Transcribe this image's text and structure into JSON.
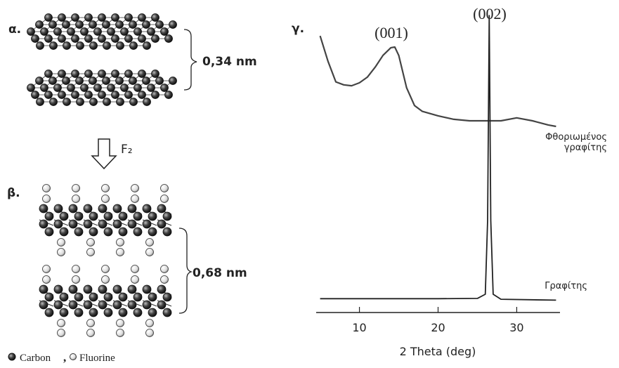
{
  "panels": {
    "a": {
      "label": "α.",
      "spacing": "0,34 nm"
    },
    "reaction": "F₂",
    "b": {
      "label": "β.",
      "spacing": "0,68 nm"
    },
    "c": {
      "label": "γ."
    }
  },
  "legend": {
    "carbon": "Carbon",
    "separator": ",",
    "fluorine": "Fluorine"
  },
  "chart_data": {
    "type": "line",
    "xlabel": "2 Theta (deg)",
    "annotations": [
      "(001)",
      "(002)"
    ],
    "xlim": [
      4.5,
      35.5
    ],
    "xticks": [
      10,
      20,
      30
    ],
    "ylim": [
      0,
      100
    ],
    "series": [
      {
        "name": "Φθοριωμένος γραφίτης",
        "color": "#444",
        "x": [
          5,
          6,
          7,
          8,
          9,
          10,
          11,
          12,
          13,
          14,
          14.5,
          15,
          16,
          17,
          18,
          20,
          22,
          24,
          26,
          28,
          30,
          32,
          34,
          35
        ],
        "values": [
          92.6,
          84,
          77,
          76,
          75.7,
          76.7,
          78.6,
          82,
          86,
          88.6,
          88.8,
          86,
          75,
          69,
          67,
          65.5,
          64.3,
          63.8,
          63.8,
          63.8,
          64.8,
          63.8,
          62.4,
          61.9
        ]
      },
      {
        "name": "Γραφίτης",
        "color": "#222",
        "x": [
          5,
          20,
          25,
          26,
          26.3,
          26.5,
          26.7,
          27,
          28,
          35
        ],
        "values": [
          3.5,
          3.5,
          3.6,
          5,
          30,
          99.5,
          30,
          5,
          3.3,
          3
        ]
      }
    ]
  }
}
